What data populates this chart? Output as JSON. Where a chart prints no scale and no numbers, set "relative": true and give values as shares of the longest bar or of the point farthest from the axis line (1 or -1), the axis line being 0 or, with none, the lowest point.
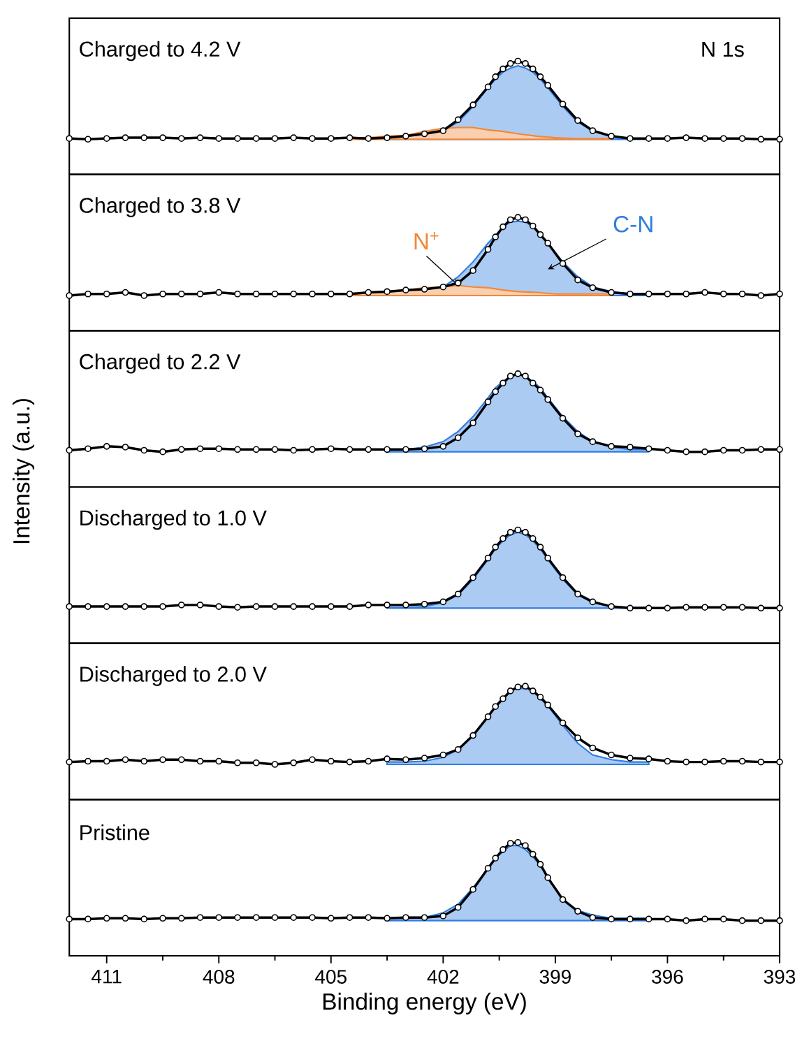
{
  "chart_data": [
    {
      "type": "line",
      "title": "Charged to 4.2 V",
      "annotations": [
        "N 1s"
      ],
      "relative": true,
      "xlim": [
        412,
        393
      ],
      "tick_labels": false,
      "x": [
        412,
        411.5,
        411,
        410.5,
        410,
        409.5,
        409,
        408.5,
        408,
        407.5,
        407,
        406.5,
        406,
        405.5,
        405,
        404.5,
        404,
        403.5,
        403,
        402.5,
        402,
        401.6,
        401.2,
        400.8,
        400.6,
        400.4,
        400.2,
        400,
        399.8,
        399.6,
        399.4,
        399.2,
        398.8,
        398.4,
        398,
        397.5,
        397,
        396.5,
        396,
        395.5,
        395,
        394.5,
        394,
        393.5,
        393
      ],
      "series": [
        {
          "marker": "circle",
          "color": "#000000",
          "values": [
            0.01,
            0,
            0.01,
            0.02,
            0.02,
            0.02,
            0.01,
            0.02,
            0.01,
            0.01,
            0.01,
            0.01,
            0.02,
            0.01,
            0.01,
            0.02,
            0.01,
            0.02,
            0.04,
            0.07,
            0.11,
            0.25,
            0.44,
            0.67,
            0.8,
            0.9,
            0.97,
            1,
            0.97,
            0.9,
            0.8,
            0.69,
            0.45,
            0.24,
            0.11,
            0.04,
            0.01,
            0.01,
            0.01,
            0.02,
            0.01,
            0.01,
            0.01,
            0,
            0
          ]
        },
        {
          "type": "area",
          "color": "#2f7de1",
          "x": [
            403.5,
            403,
            402.5,
            402,
            401.6,
            401.2,
            400.8,
            400.6,
            400.4,
            400.2,
            400,
            399.8,
            399.6,
            399.4,
            399.2,
            398.8,
            398.4,
            398,
            397.5,
            397,
            396.5
          ],
          "values": [
            0.01,
            0.01,
            null,
            0.11,
            0.22,
            0.42,
            0.66,
            0.77,
            0.86,
            0.91,
            0.94,
            0.91,
            0.86,
            0.77,
            0.66,
            0.42,
            0.22,
            0.11,
            0.04,
            0.01,
            0.01
          ]
        },
        {
          "type": "area",
          "color": "#f0883a",
          "x": [
            404.5,
            404,
            403.5,
            403,
            402.5,
            402,
            401.6,
            401.2,
            400.8,
            400.4,
            400,
            399.5,
            399,
            398.5,
            397.5
          ],
          "values": [
            0.01,
            0.02,
            0.04,
            0.05,
            0.1,
            0.14,
            0.15,
            0.15,
            0.12,
            0.1,
            0.07,
            0.04,
            0.02,
            0.01,
            0.01
          ]
        }
      ]
    },
    {
      "type": "line",
      "title": "Charged to 3.8 V",
      "relative": true,
      "xlim": [
        412,
        393
      ],
      "tick_labels": false,
      "x": [
        412,
        411.5,
        411,
        410.5,
        410,
        409.5,
        409,
        408.5,
        408,
        407.5,
        407,
        406.5,
        406,
        405.5,
        405,
        404.5,
        404,
        403.5,
        403,
        402.5,
        402,
        401.6,
        401.2,
        400.8,
        400.6,
        400.4,
        400.2,
        400,
        399.8,
        399.6,
        399.4,
        399.2,
        398.8,
        398.4,
        398,
        397.5,
        397,
        396.5,
        396,
        395.5,
        395,
        394.5,
        394,
        393.5,
        393
      ],
      "series": [
        {
          "marker": "circle",
          "color": "#000000",
          "values": [
            0,
            0.02,
            0.02,
            0.04,
            0,
            0.02,
            0.02,
            0.02,
            0.04,
            0.02,
            0.02,
            0.02,
            0.02,
            0.02,
            0.02,
            0.02,
            0.04,
            0.05,
            0.07,
            0.08,
            0.11,
            0.16,
            0.32,
            0.59,
            0.75,
            0.88,
            0.97,
            1,
            0.97,
            0.89,
            0.78,
            0.67,
            0.41,
            0.2,
            0.1,
            0.04,
            0.02,
            0.02,
            0.02,
            0.02,
            0.04,
            0.02,
            0.02,
            0,
            0.02
          ]
        },
        {
          "type": "area",
          "name": "C-N",
          "color": "#2f7de1",
          "x": [
            403.5,
            403,
            402.5,
            402,
            401.6,
            401.2,
            400.8,
            400.6,
            400.4,
            400.2,
            400,
            399.8,
            399.6,
            399.4,
            399.2,
            398.8,
            398.4,
            398,
            397.5,
            397,
            396.5
          ],
          "values": [
            0.02,
            0.02,
            null,
            0.11,
            0.24,
            0.43,
            0.67,
            0.77,
            0.88,
            0.94,
            0.95,
            0.94,
            0.88,
            0.77,
            0.67,
            0.43,
            0.24,
            0.11,
            0.05,
            0.02,
            0.02
          ]
        },
        {
          "type": "area",
          "name": "N$^{+}$",
          "color": "#f0883a",
          "x": [
            404.5,
            404,
            403.5,
            403,
            402.5,
            402,
            401.6,
            401.2,
            400.8,
            400.4,
            400,
            399.5,
            399,
            398.5,
            397.5
          ],
          "values": [
            0.02,
            0.04,
            0.05,
            0.07,
            0.1,
            0.11,
            0.13,
            0.11,
            0.1,
            0.07,
            0.05,
            0.04,
            0.02,
            0.02,
            0.02
          ]
        }
      ]
    },
    {
      "type": "line",
      "title": "Charged to 2.2 V",
      "ylabel": "Intensity (a.u.)",
      "relative": true,
      "xlim": [
        412,
        393
      ],
      "tick_labels": false,
      "x": [
        412,
        411.5,
        411,
        410.5,
        410,
        409.5,
        409,
        408.5,
        408,
        407.5,
        407,
        406.5,
        406,
        405.5,
        405,
        404.5,
        404,
        403.5,
        403,
        402.5,
        402,
        401.6,
        401.2,
        400.8,
        400.6,
        400.4,
        400.2,
        400,
        399.8,
        399.6,
        399.4,
        399.2,
        398.8,
        398.4,
        398,
        397.5,
        397,
        396.5,
        396,
        395.5,
        395,
        394.5,
        394,
        393.5,
        393
      ],
      "series": [
        {
          "marker": "circle",
          "color": "#000000",
          "values": [
            0.02,
            0.04,
            0.07,
            0.06,
            0.02,
            0,
            0.03,
            0.04,
            0.04,
            0.03,
            0.03,
            0.03,
            0.02,
            0.03,
            0.04,
            0.03,
            0.03,
            0.03,
            0.03,
            0.04,
            0.07,
            0.18,
            0.37,
            0.64,
            0.77,
            0.88,
            0.97,
            1,
            0.97,
            0.88,
            0.79,
            0.67,
            0.43,
            0.23,
            0.13,
            0.07,
            0.06,
            0.04,
            0.02,
            0,
            0,
            0.02,
            0.02,
            0.03,
            0.03
          ]
        },
        {
          "type": "area",
          "color": "#2f7de1",
          "x": [
            403.5,
            403,
            402.5,
            402,
            401.6,
            401.2,
            400.8,
            400.6,
            400.4,
            400.2,
            400,
            399.8,
            399.6,
            399.4,
            399.2,
            398.8,
            398.4,
            398,
            397.5,
            397,
            396.5
          ],
          "values": [
            0.03,
            0.03,
            0.06,
            0.13,
            0.26,
            0.45,
            0.69,
            0.82,
            0.9,
            0.96,
            0.99,
            0.96,
            0.9,
            0.82,
            0.69,
            0.45,
            0.26,
            0.13,
            0.06,
            0.03,
            0.03
          ]
        }
      ]
    },
    {
      "type": "line",
      "title": "Discharged to 1.0 V",
      "relative": true,
      "xlim": [
        412,
        393
      ],
      "tick_labels": false,
      "x": [
        412,
        411.5,
        411,
        410.5,
        410,
        409.5,
        409,
        408.5,
        408,
        407.5,
        407,
        406.5,
        406,
        405.5,
        405,
        404.5,
        404,
        403.5,
        403,
        402.5,
        402,
        401.6,
        401.2,
        400.8,
        400.6,
        400.4,
        400.2,
        400,
        399.8,
        399.6,
        399.4,
        399.2,
        398.8,
        398.4,
        398,
        397.5,
        397,
        396.5,
        396,
        395.5,
        395,
        394.5,
        394,
        393.5,
        393
      ],
      "series": [
        {
          "marker": "circle",
          "color": "#000000",
          "values": [
            0.02,
            0.02,
            0.02,
            0.02,
            0.02,
            0.02,
            0.04,
            0.04,
            0.02,
            0.01,
            0.02,
            0.02,
            0.02,
            0.02,
            0.02,
            0.02,
            0.04,
            0.04,
            0.04,
            0.05,
            0.08,
            0.18,
            0.39,
            0.64,
            0.78,
            0.89,
            0.97,
            1,
            0.97,
            0.89,
            0.78,
            0.64,
            0.39,
            0.18,
            0.08,
            0.02,
            0,
            0,
            0,
            0.01,
            0.01,
            0.01,
            0.01,
            0,
            0
          ]
        },
        {
          "type": "area",
          "color": "#2f7de1",
          "x": [
            403.5,
            403,
            402.5,
            402,
            401.6,
            401.2,
            400.8,
            400.6,
            400.4,
            400.2,
            400,
            399.8,
            399.6,
            399.4,
            399.2,
            398.8,
            398.4,
            398,
            397.5,
            397,
            396.5
          ],
          "values": [
            0.01,
            0.01,
            0.02,
            0.07,
            0.17,
            0.37,
            0.62,
            0.76,
            0.86,
            0.94,
            0.97,
            0.94,
            0.86,
            0.76,
            0.62,
            0.37,
            0.17,
            0.07,
            0.02,
            0.01,
            0.01
          ]
        }
      ]
    },
    {
      "type": "line",
      "title": "Discharged to 2.0 V",
      "relative": true,
      "xlim": [
        412,
        393
      ],
      "tick_labels": false,
      "x": [
        412,
        411.5,
        411,
        410.5,
        410,
        409.5,
        409,
        408.5,
        408,
        407.5,
        407,
        406.5,
        406,
        405.5,
        405,
        404.5,
        404,
        403.5,
        403,
        402.5,
        402,
        401.6,
        401.2,
        400.8,
        400.6,
        400.4,
        400.2,
        400,
        399.8,
        399.6,
        399.4,
        399.2,
        398.8,
        398.4,
        398,
        397.5,
        397,
        396.5,
        396,
        395.5,
        395,
        394.5,
        394,
        393.5,
        393
      ],
      "series": [
        {
          "marker": "circle",
          "color": "#000000",
          "values": [
            0.03,
            0.04,
            0.04,
            0.06,
            0.04,
            0.06,
            0.06,
            0.04,
            0.04,
            0.02,
            0.02,
            0,
            0.02,
            0.06,
            0.04,
            0.03,
            0.04,
            0.07,
            0.06,
            0.08,
            0.12,
            0.19,
            0.37,
            0.61,
            0.74,
            0.84,
            0.94,
            0.99,
            1,
            0.94,
            0.86,
            0.76,
            0.53,
            0.34,
            0.21,
            0.12,
            0.08,
            0.07,
            0.04,
            0.03,
            0.03,
            0.04,
            0.04,
            0.03,
            0.03
          ]
        },
        {
          "type": "area",
          "color": "#2f7de1",
          "x": [
            403.5,
            403,
            402.5,
            402,
            401.6,
            401.2,
            400.8,
            400.6,
            400.4,
            400.2,
            400,
            399.8,
            399.6,
            399.4,
            399.2,
            398.8,
            398.4,
            398,
            397.5,
            397,
            396.5
          ],
          "values": [
            0.03,
            0.03,
            0.04,
            0.09,
            0.19,
            0.37,
            0.62,
            0.75,
            0.84,
            0.94,
            0.97,
            0.97,
            0.94,
            0.84,
            0.75,
            0.5,
            0.27,
            0.12,
            0.06,
            0.03,
            0.03
          ]
        }
      ]
    },
    {
      "type": "line",
      "title": "Pristine",
      "xlabel": "Binding energy (eV)",
      "relative": true,
      "xlim": [
        412,
        393
      ],
      "xticks": [
        411,
        408,
        405,
        402,
        399,
        396,
        393
      ],
      "tick_labels": "x",
      "x": [
        412,
        411.5,
        411,
        410.5,
        410,
        409.5,
        409,
        408.5,
        408,
        407.5,
        407,
        406.5,
        406,
        405.5,
        405,
        404.5,
        404,
        403.5,
        403,
        402.5,
        402,
        401.6,
        401.2,
        400.8,
        400.6,
        400.4,
        400.2,
        400,
        399.8,
        399.6,
        399.4,
        399.2,
        398.8,
        398.4,
        398,
        397.5,
        397,
        396.5,
        396,
        395.5,
        395,
        394.5,
        394,
        393.5,
        393
      ],
      "series": [
        {
          "marker": "circle",
          "color": "#000000",
          "values": [
            0.02,
            0.02,
            0.03,
            0.03,
            0.02,
            0.03,
            0.03,
            0.04,
            0.04,
            0.04,
            0.04,
            0.04,
            0.04,
            0.04,
            0.03,
            0.04,
            0.04,
            0.03,
            0.04,
            0.04,
            0.06,
            0.17,
            0.4,
            0.67,
            0.8,
            0.91,
            0.99,
            1,
            0.96,
            0.85,
            0.72,
            0.55,
            0.27,
            0.12,
            0.04,
            0.02,
            0.02,
            0.02,
            0.02,
            0,
            0.02,
            0.02,
            0,
            0,
            0
          ]
        },
        {
          "type": "area",
          "color": "#2f7de1",
          "x": [
            403.5,
            403,
            402.5,
            402,
            401.6,
            401.2,
            400.8,
            400.6,
            400.4,
            400.2,
            400,
            399.8,
            399.6,
            399.4,
            399.2,
            398.8,
            398.4,
            398,
            397.5,
            397,
            396.5
          ],
          "values": [
            0.03,
            0.03,
            0.04,
            0.1,
            0.21,
            0.42,
            0.67,
            0.8,
            0.88,
            0.96,
            0.96,
            0.91,
            0.82,
            0.7,
            0.55,
            0.27,
            0.13,
            0.07,
            0.03,
            0.03,
            0.03
          ]
        }
      ]
    }
  ]
}
